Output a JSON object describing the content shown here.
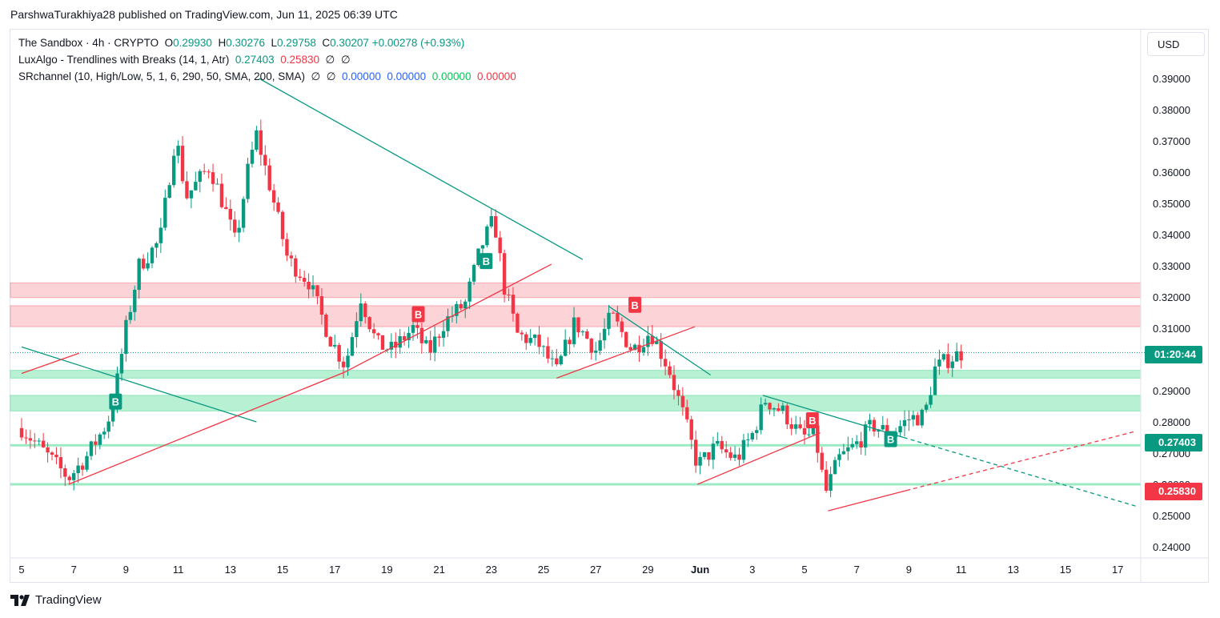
{
  "publisher_line": "ParshwaTurakhiya28 published on TradingView.com, Jun 11, 2025 06:39 UTC",
  "legend": {
    "symbol": "The Sandbox · 4h · CRYPTO",
    "open_label": "O",
    "open": "0.29930",
    "high_label": "H",
    "high": "0.30276",
    "low_label": "L",
    "low": "0.29758",
    "close_label": "C",
    "close": "0.30207",
    "change": "+0.00278 (+0.93%)",
    "indicator1_name": "LuxAlgo - Trendlines with Breaks (14, 1, Atr)",
    "indicator1_v1": "0.27403",
    "indicator1_v2": "0.25830",
    "indicator1_na1": "∅",
    "indicator1_na2": "∅",
    "indicator2_name": "SRchannel (10, High/Low, 5, 1, 6, 290, 50, SMA, 200, SMA)",
    "indicator2_na1": "∅",
    "indicator2_na2": "∅",
    "indicator2_v1": "0.00000",
    "indicator2_v2": "0.00000",
    "indicator2_v3": "0.00000",
    "indicator2_v4": "0.00000"
  },
  "currency_button": "USD",
  "price_tags": {
    "countdown": "01:20:44",
    "upper_trend": "0.27403",
    "lower_trend": "0.25830"
  },
  "colors": {
    "up": "#089981",
    "down": "#f23645",
    "resistance_zone": "#f23645",
    "support_zone": "#22d17a",
    "trend_down": "#089981",
    "trend_up": "#f23645"
  },
  "chart_data": {
    "type": "candlestick",
    "symbol": "The Sandbox",
    "interval": "4h",
    "y_axis_ticks": [
      "0.39000",
      "0.38000",
      "0.37000",
      "0.36000",
      "0.35000",
      "0.34000",
      "0.33000",
      "0.32000",
      "0.31000",
      "0.30000",
      "0.29000",
      "0.28000",
      "0.27000",
      "0.26000",
      "0.25000",
      "0.24000"
    ],
    "x_axis_ticks": [
      "5",
      "7",
      "9",
      "11",
      "13",
      "15",
      "17",
      "19",
      "21",
      "23",
      "25",
      "27",
      "29",
      "Jun",
      "3",
      "5",
      "7",
      "9",
      "11",
      "13",
      "15",
      "17"
    ],
    "ylim": [
      0.2375,
      0.3975
    ],
    "x_day_range": [
      5,
      48
    ],
    "anchors": [
      {
        "day": 5.0,
        "price": 0.278
      },
      {
        "day": 6.8,
        "price": 0.262
      },
      {
        "day": 7.5,
        "price": 0.269
      },
      {
        "day": 8.3,
        "price": 0.28
      },
      {
        "day": 8.6,
        "price": 0.29
      },
      {
        "day": 9.0,
        "price": 0.31
      },
      {
        "day": 9.5,
        "price": 0.33
      },
      {
        "day": 10.3,
        "price": 0.338
      },
      {
        "day": 10.9,
        "price": 0.372
      },
      {
        "day": 11.3,
        "price": 0.352
      },
      {
        "day": 12.2,
        "price": 0.362
      },
      {
        "day": 12.8,
        "price": 0.348
      },
      {
        "day": 13.2,
        "price": 0.337
      },
      {
        "day": 13.7,
        "price": 0.362
      },
      {
        "day": 14.0,
        "price": 0.372
      },
      {
        "day": 14.5,
        "price": 0.356
      },
      {
        "day": 15.2,
        "price": 0.332
      },
      {
        "day": 16.0,
        "price": 0.325
      },
      {
        "day": 16.8,
        "price": 0.307
      },
      {
        "day": 17.4,
        "price": 0.298
      },
      {
        "day": 18.0,
        "price": 0.32
      },
      {
        "day": 18.6,
        "price": 0.305
      },
      {
        "day": 19.2,
        "price": 0.303
      },
      {
        "day": 20.0,
        "price": 0.31
      },
      {
        "day": 20.6,
        "price": 0.302
      },
      {
        "day": 21.2,
        "price": 0.312
      },
      {
        "day": 22.0,
        "price": 0.318
      },
      {
        "day": 22.6,
        "price": 0.336
      },
      {
        "day": 23.1,
        "price": 0.345
      },
      {
        "day": 23.5,
        "price": 0.323
      },
      {
        "day": 24.0,
        "price": 0.308
      },
      {
        "day": 24.8,
        "price": 0.305
      },
      {
        "day": 25.5,
        "price": 0.296
      },
      {
        "day": 26.2,
        "price": 0.312
      },
      {
        "day": 27.0,
        "price": 0.303
      },
      {
        "day": 27.6,
        "price": 0.314
      },
      {
        "day": 28.4,
        "price": 0.303
      },
      {
        "day": 29.1,
        "price": 0.309
      },
      {
        "day": 29.8,
        "price": 0.297
      },
      {
        "day": 30.4,
        "price": 0.281
      },
      {
        "day": 30.9,
        "price": 0.266
      },
      {
        "day": 31.6,
        "price": 0.272
      },
      {
        "day": 32.4,
        "price": 0.268
      },
      {
        "day": 33.0,
        "price": 0.276
      },
      {
        "day": 33.5,
        "price": 0.287
      },
      {
        "day": 34.2,
        "price": 0.283
      },
      {
        "day": 34.9,
        "price": 0.275
      },
      {
        "day": 35.4,
        "price": 0.276
      },
      {
        "day": 35.8,
        "price": 0.257
      },
      {
        "day": 36.3,
        "price": 0.268
      },
      {
        "day": 37.0,
        "price": 0.273
      },
      {
        "day": 37.6,
        "price": 0.279
      },
      {
        "day": 38.3,
        "price": 0.276
      },
      {
        "day": 39.0,
        "price": 0.281
      },
      {
        "day": 39.6,
        "price": 0.282
      },
      {
        "day": 40.0,
        "price": 0.297
      },
      {
        "day": 40.5,
        "price": 0.3
      },
      {
        "day": 41.0,
        "price": 0.302
      }
    ],
    "resistance_zones": [
      [
        0.3198,
        0.3245
      ],
      [
        0.3105,
        0.3172
      ]
    ],
    "support_zones": [
      [
        0.294,
        0.2965
      ],
      [
        0.2835,
        0.2885
      ]
    ],
    "support_lines": [
      0.2725,
      0.26
    ],
    "current_price_line": 0.3022,
    "trendlines": [
      {
        "color": "down",
        "from": [
          5.0,
          0.304
        ],
        "to": [
          14.0,
          0.28
        ]
      },
      {
        "color": "down",
        "from": [
          14.1,
          0.39
        ],
        "to": [
          26.5,
          0.332
        ]
      },
      {
        "color": "down",
        "from": [
          27.5,
          0.317
        ],
        "to": [
          31.4,
          0.295
        ]
      },
      {
        "color": "down",
        "from": [
          33.4,
          0.2885
        ],
        "to": [
          38.8,
          0.275
        ]
      },
      {
        "color": "down",
        "dashed": true,
        "from": [
          38.8,
          0.275
        ],
        "to": [
          47.7,
          0.253
        ]
      },
      {
        "color": "up",
        "from": [
          5.0,
          0.2955
        ],
        "to": [
          7.2,
          0.302
        ]
      },
      {
        "color": "up",
        "from": [
          6.8,
          0.26
        ],
        "to": [
          17.4,
          0.296
        ]
      },
      {
        "color": "up",
        "from": [
          17.4,
          0.296
        ],
        "to": [
          25.3,
          0.3305
        ]
      },
      {
        "color": "up",
        "from": [
          25.5,
          0.294
        ],
        "to": [
          30.8,
          0.3105
        ]
      },
      {
        "color": "up",
        "from": [
          30.9,
          0.26
        ],
        "to": [
          35.6,
          0.2765
        ]
      },
      {
        "color": "up",
        "from": [
          35.9,
          0.2515
        ],
        "to": [
          38.9,
          0.258
        ]
      },
      {
        "color": "up",
        "dashed": true,
        "from": [
          38.9,
          0.258
        ],
        "to": [
          47.7,
          0.277
        ]
      }
    ],
    "break_labels": [
      {
        "text": "B",
        "color": "up",
        "day": 8.6,
        "price": 0.2865
      },
      {
        "text": "B",
        "color": "down",
        "day": 20.2,
        "price": 0.3145
      },
      {
        "text": "B",
        "color": "up",
        "day": 22.8,
        "price": 0.3315
      },
      {
        "text": "B",
        "color": "down",
        "day": 28.5,
        "price": 0.3175
      },
      {
        "text": "B",
        "color": "down",
        "day": 35.3,
        "price": 0.2805
      },
      {
        "text": "B",
        "color": "up",
        "day": 38.3,
        "price": 0.2745
      }
    ]
  }
}
